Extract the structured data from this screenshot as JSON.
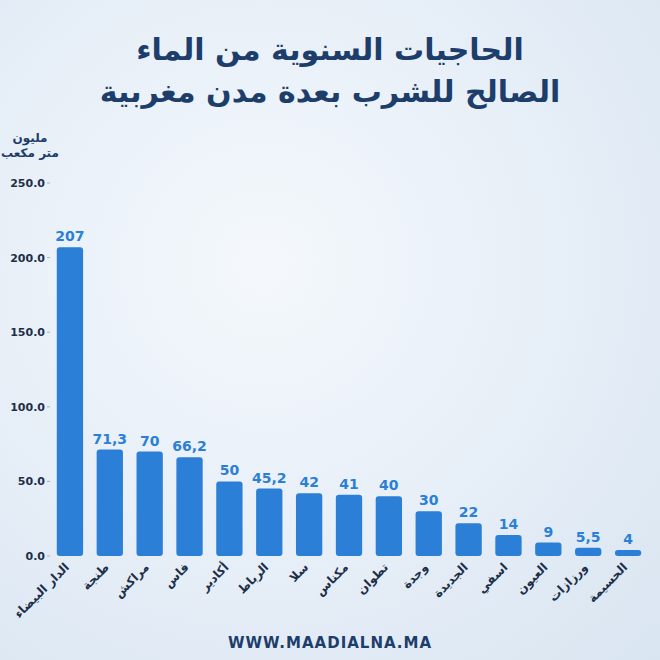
{
  "chart_data": {
    "type": "bar",
    "title": "الحاجيات السنوية من الماء الصالح للشرب بعدة مدن مغربية",
    "ylabel": "مليون متر مكعب",
    "source": "WWW.MAADIALNA.MA",
    "categories": [
      "الدار البيضاء",
      "طنجة",
      "مراكش",
      "فاس",
      "أكادير",
      "الرباط",
      "سلا",
      "مكناس",
      "تطوان",
      "وجدة",
      "الجديدة",
      "اسفي",
      "العيون",
      "ورزازات",
      "الحسيمة"
    ],
    "values": [
      207,
      71.3,
      70,
      66.2,
      50,
      45.2,
      42,
      41,
      40,
      30,
      22,
      14,
      9,
      5.5,
      4
    ],
    "value_labels": [
      "207",
      "71,3",
      "70",
      "66,2",
      "50",
      "45,2",
      "42",
      "41",
      "40",
      "30",
      "22",
      "14",
      "9",
      "5,5",
      "4"
    ],
    "color": "#2b7fd6",
    "ylim": [
      0,
      250
    ],
    "yticks": [
      {
        "value": 0,
        "label": "0.0"
      },
      {
        "value": 50,
        "label": "50.0"
      },
      {
        "value": 100,
        "label": "100.0"
      },
      {
        "value": 150,
        "label": "150.0"
      },
      {
        "value": 200,
        "label": "200.0"
      },
      {
        "value": 250,
        "label": "250.0"
      }
    ],
    "grid": false,
    "data_labels": true
  }
}
